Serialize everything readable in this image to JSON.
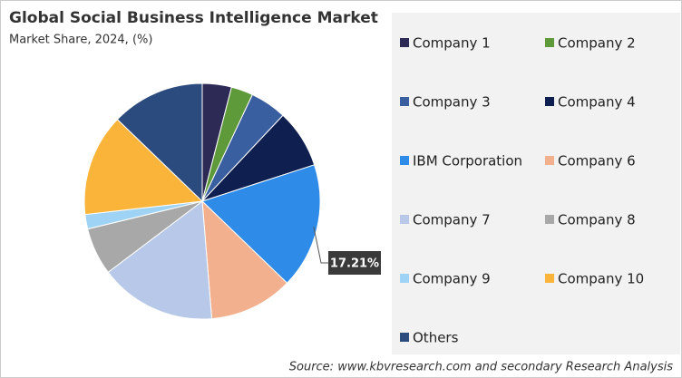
{
  "chart_data": {
    "type": "pie",
    "title": "Global Social Business Intelligence Market",
    "subtitle": "Market Share, 2024, (%)",
    "categories": [
      "Company 1",
      "Company 2",
      "Company 3",
      "Company 4",
      "IBM Corporation",
      "Company 6",
      "Company 7",
      "Company 8",
      "Company 9",
      "Company 10",
      "Others"
    ],
    "values": [
      4,
      3,
      5,
      8,
      17.21,
      11.5,
      16,
      6.5,
      2,
      14,
      12.79
    ],
    "value_labels": [
      null,
      null,
      null,
      null,
      "17.21%",
      null,
      null,
      null,
      null,
      null,
      null
    ],
    "colors": [
      "#2e2a56",
      "#5f9a3a",
      "#3a5fa0",
      "#0f1f4f",
      "#2f8be8",
      "#f2b08f",
      "#b7c8e8",
      "#a8a8a8",
      "#9fd3f5",
      "#fbb43a",
      "#2b4a7d"
    ],
    "source": "Source: www.kbvresearch.com and secondary Research Analysis"
  }
}
